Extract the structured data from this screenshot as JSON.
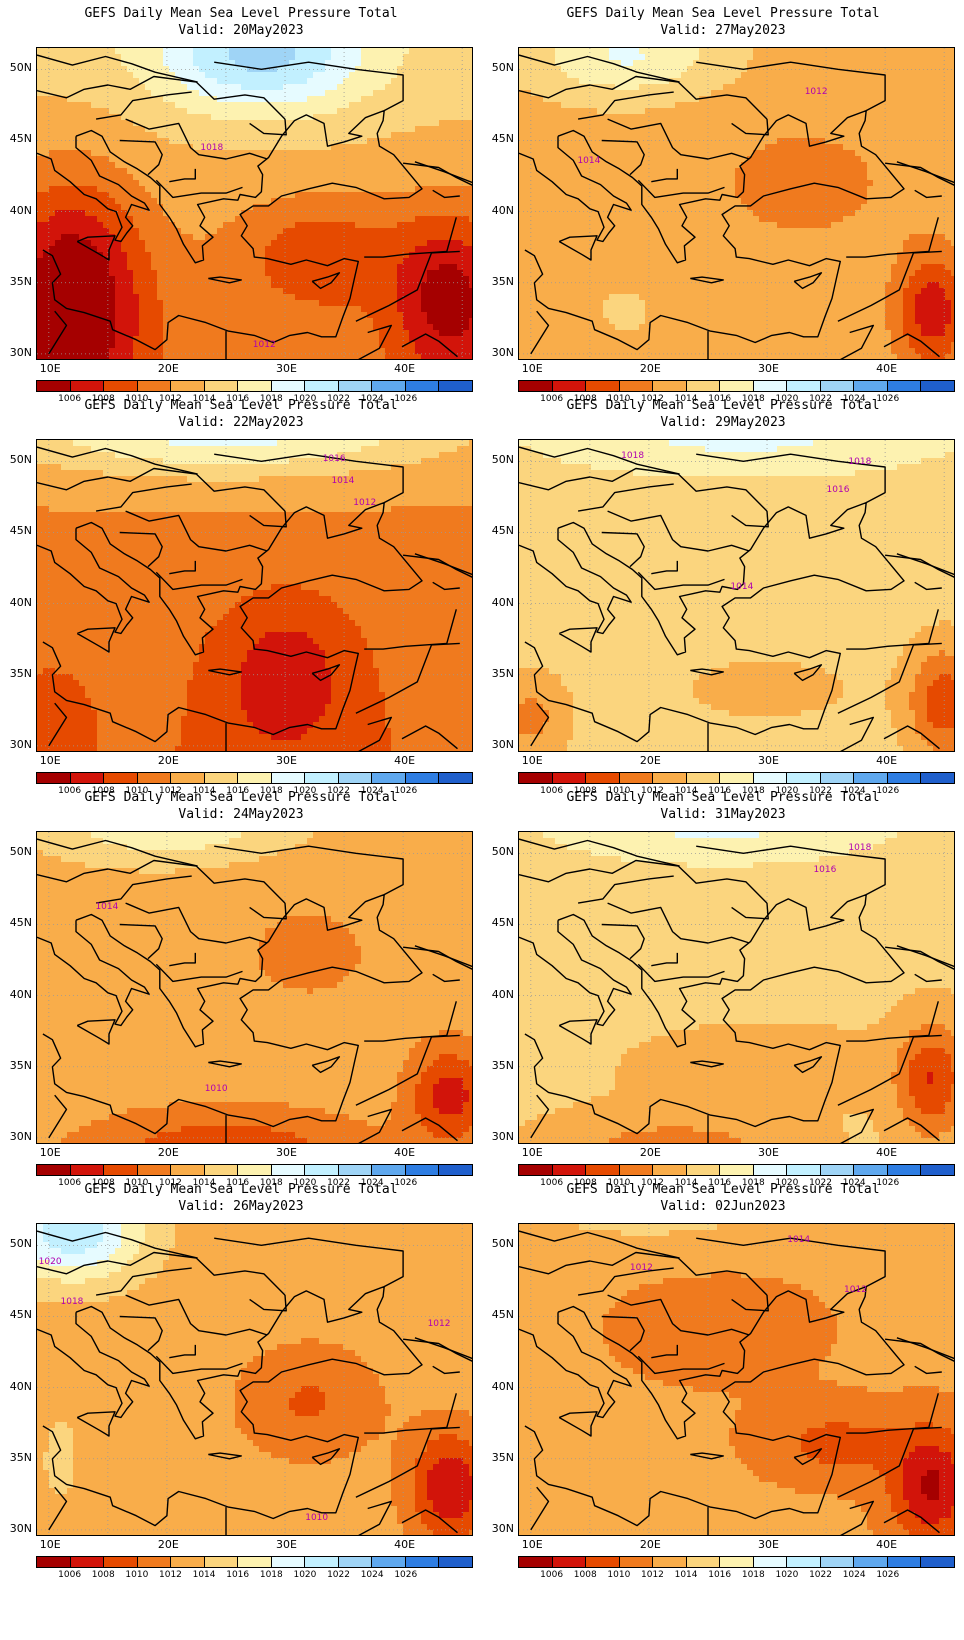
{
  "panels": [
    {
      "title": "GEFS Daily Mean Sea Level Pressure Total",
      "valid": "Valid: 20May2023",
      "labels": [
        "1018",
        "1012"
      ]
    },
    {
      "title": "GEFS Daily Mean Sea Level Pressure Total",
      "valid": "Valid: 27May2023",
      "labels": [
        "1012",
        "1014"
      ]
    },
    {
      "title": "GEFS Daily Mean Sea Level Pressure Total",
      "valid": "Valid: 22May2023",
      "labels": [
        "1016",
        "1014",
        "1012"
      ]
    },
    {
      "title": "GEFS Daily Mean Sea Level Pressure Total",
      "valid": "Valid: 29May2023",
      "labels": [
        "1018",
        "1018",
        "1016",
        "1014"
      ]
    },
    {
      "title": "GEFS Daily Mean Sea Level Pressure Total",
      "valid": "Valid: 24May2023",
      "labels": [
        "1014",
        "1010"
      ]
    },
    {
      "title": "GEFS Daily Mean Sea Level Pressure Total",
      "valid": "Valid: 31May2023",
      "labels": [
        "1018",
        "1016"
      ]
    },
    {
      "title": "GEFS Daily Mean Sea Level Pressure Total",
      "valid": "Valid: 26May2023",
      "labels": [
        "1020",
        "1018",
        "1012",
        "1010"
      ]
    },
    {
      "title": "GEFS Daily Mean Sea Level Pressure Total",
      "valid": "Valid: 02Jun2023",
      "labels": [
        "1014",
        "1012",
        "1012"
      ]
    }
  ],
  "lat_ticks": [
    "50N",
    "45N",
    "40N",
    "35N",
    "30N"
  ],
  "lon_ticks": [
    "10E",
    "20E",
    "30E",
    "40E"
  ],
  "colorbar": {
    "labels": [
      "1006",
      "1008",
      "1010",
      "1012",
      "1014",
      "1016",
      "1018",
      "1020",
      "1022",
      "1024",
      "1026"
    ],
    "colors": [
      "#a50000",
      "#d2140a",
      "#e64a00",
      "#f07a1e",
      "#f9ad4a",
      "#fbd57e",
      "#fdf2b0",
      "#e6fbff",
      "#c2f0ff",
      "#9fd4f6",
      "#5fa8ee",
      "#2e7de2",
      "#1f5fcc"
    ]
  }
}
